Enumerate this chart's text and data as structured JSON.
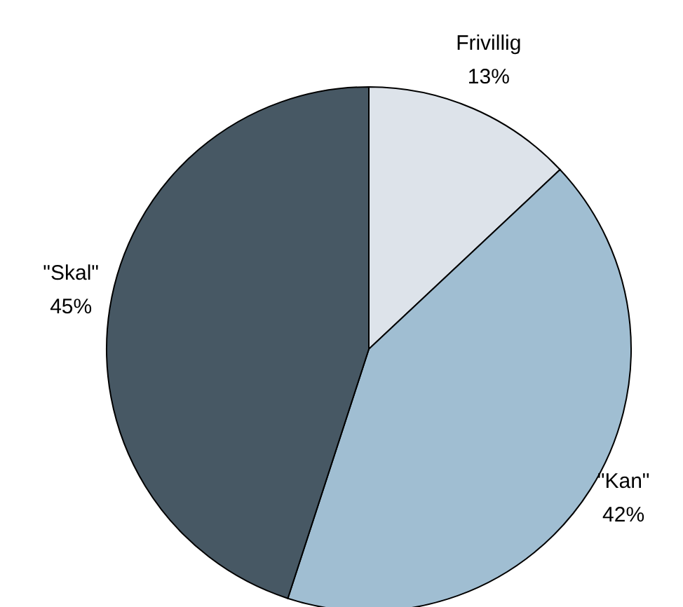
{
  "chart_data": {
    "type": "pie",
    "categories": [
      "Frivillig",
      "\"Kan\"",
      "\"Skal\""
    ],
    "values": [
      13,
      42,
      45
    ],
    "value_labels": [
      "13%",
      "42%",
      "45%"
    ],
    "colors": [
      "#dde3ea",
      "#a0bed2",
      "#475864"
    ]
  }
}
